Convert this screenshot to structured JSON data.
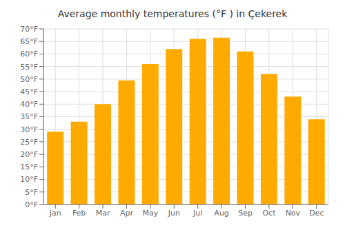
{
  "chart_data": {
    "type": "bar",
    "title": "Average monthly temperatures (°F ) in Çekerek",
    "categories": [
      "Jan",
      "Feb",
      "Mar",
      "Apr",
      "May",
      "Jun",
      "Jul",
      "Aug",
      "Sep",
      "Oct",
      "Nov",
      "Dec"
    ],
    "values": [
      29,
      33,
      40,
      49.5,
      56,
      62,
      66,
      66.5,
      61,
      52,
      43,
      34
    ],
    "color": "#FFAA00",
    "ylim": [
      0,
      70
    ],
    "yticks": [
      {
        "value": 0,
        "label": "0°F"
      },
      {
        "value": 5,
        "label": "5°F"
      },
      {
        "value": 10,
        "label": "10°F"
      },
      {
        "value": 15,
        "label": "15°F"
      },
      {
        "value": 20,
        "label": "20°F"
      },
      {
        "value": 25,
        "label": "25°F"
      },
      {
        "value": 30,
        "label": "30°F"
      },
      {
        "value": 35,
        "label": "35°F"
      },
      {
        "value": 40,
        "label": "40°F"
      },
      {
        "value": 45,
        "label": "45°F"
      },
      {
        "value": 50,
        "label": "50°F"
      },
      {
        "value": 55,
        "label": "55°F"
      },
      {
        "value": 60,
        "label": "60°F"
      },
      {
        "value": 65,
        "label": "65°F"
      },
      {
        "value": 70,
        "label": "70°F"
      }
    ],
    "grid": true
  }
}
